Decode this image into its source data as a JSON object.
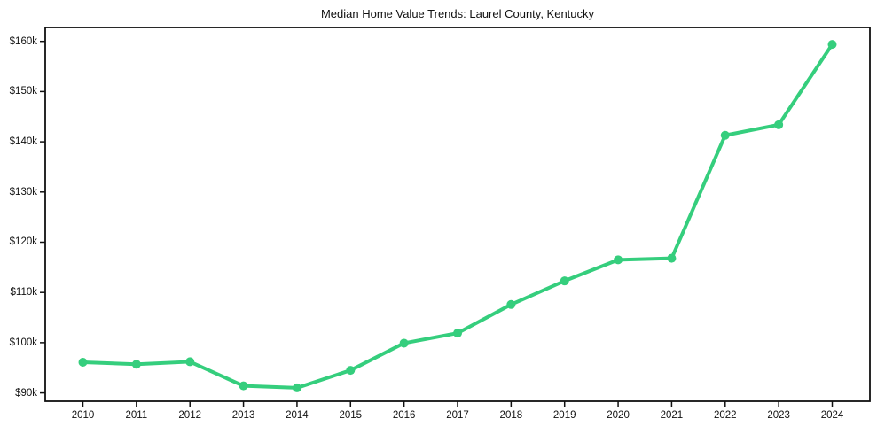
{
  "chart_data": {
    "type": "line",
    "title": "Median Home Value Trends: Laurel County, Kentucky",
    "xlabel": "",
    "ylabel": "",
    "categories": [
      "2010",
      "2011",
      "2012",
      "2013",
      "2014",
      "2015",
      "2016",
      "2017",
      "2018",
      "2019",
      "2020",
      "2021",
      "2022",
      "2023",
      "2024"
    ],
    "series": [
      {
        "name": "Median Home Value",
        "values": [
          96100,
          95700,
          96200,
          91400,
          91000,
          94500,
          99900,
          101900,
          107600,
          112300,
          116500,
          116800,
          141300,
          143400,
          159400
        ]
      }
    ],
    "ylim": [
      88340,
      162770
    ],
    "yticks": [
      90000,
      100000,
      110000,
      120000,
      130000,
      140000,
      150000,
      160000
    ],
    "ytick_labels": [
      "$90k",
      "$100k",
      "$110k",
      "$120k",
      "$130k",
      "$140k",
      "$150k",
      "$160k"
    ],
    "grid": false,
    "legend": false,
    "line_color": "#35ce7d",
    "marker": "circle",
    "spine_color": "#111111",
    "text_color": "#111111",
    "background_color": "#ffffff"
  }
}
